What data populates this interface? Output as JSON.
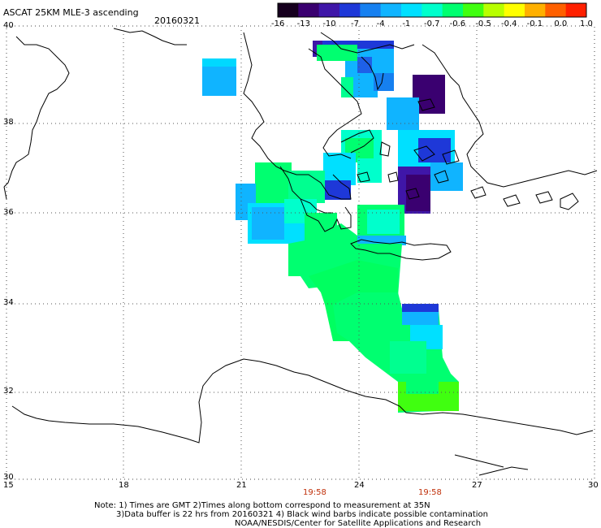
{
  "header": {
    "product": "ASCAT 25KM MLE-3 ascending",
    "date": "20160321"
  },
  "colorbar": {
    "labels": [
      "-16",
      "-13",
      "-10",
      "-7",
      "-4",
      "-1",
      "-0.7",
      "-0.6",
      "-0.5",
      "-0.4",
      "-0.1",
      "0.0",
      "1.0"
    ],
    "colors": [
      "#16001e",
      "#3a0070",
      "#3f16a8",
      "#1e38d8",
      "#1680f0",
      "#10b4ff",
      "#00e0ff",
      "#00ffcc",
      "#00ff70",
      "#40ff10",
      "#b8ff00",
      "#ffff00",
      "#ffb000",
      "#ff6000",
      "#ff2000"
    ]
  },
  "axes": {
    "lat_labels": [
      "40",
      "38",
      "36",
      "34",
      "32",
      "30"
    ],
    "lon_labels": [
      "15",
      "18",
      "21",
      "24",
      "27",
      "30"
    ]
  },
  "times": [
    "19:58",
    "19:58"
  ],
  "notes": {
    "line1": "Note: 1) Times are GMT 2)Times along bottom correspond to measurement at 35N",
    "line2": "3)Data buffer is 22 hrs from 20160321 4) Black wind barbs indicate possible contamination",
    "line3": "NOAA/NESDIS/Center for Satellite Applications and Research"
  },
  "legend_colors": {
    "deep": "#3a0070",
    "blue": "#1e38d8",
    "lightblue": "#10b4ff",
    "cyan": "#00e0ff",
    "teal": "#00ffcc",
    "green": "#00ff70",
    "lime": "#40ff10",
    "yellowgreen": "#b8ff00"
  }
}
